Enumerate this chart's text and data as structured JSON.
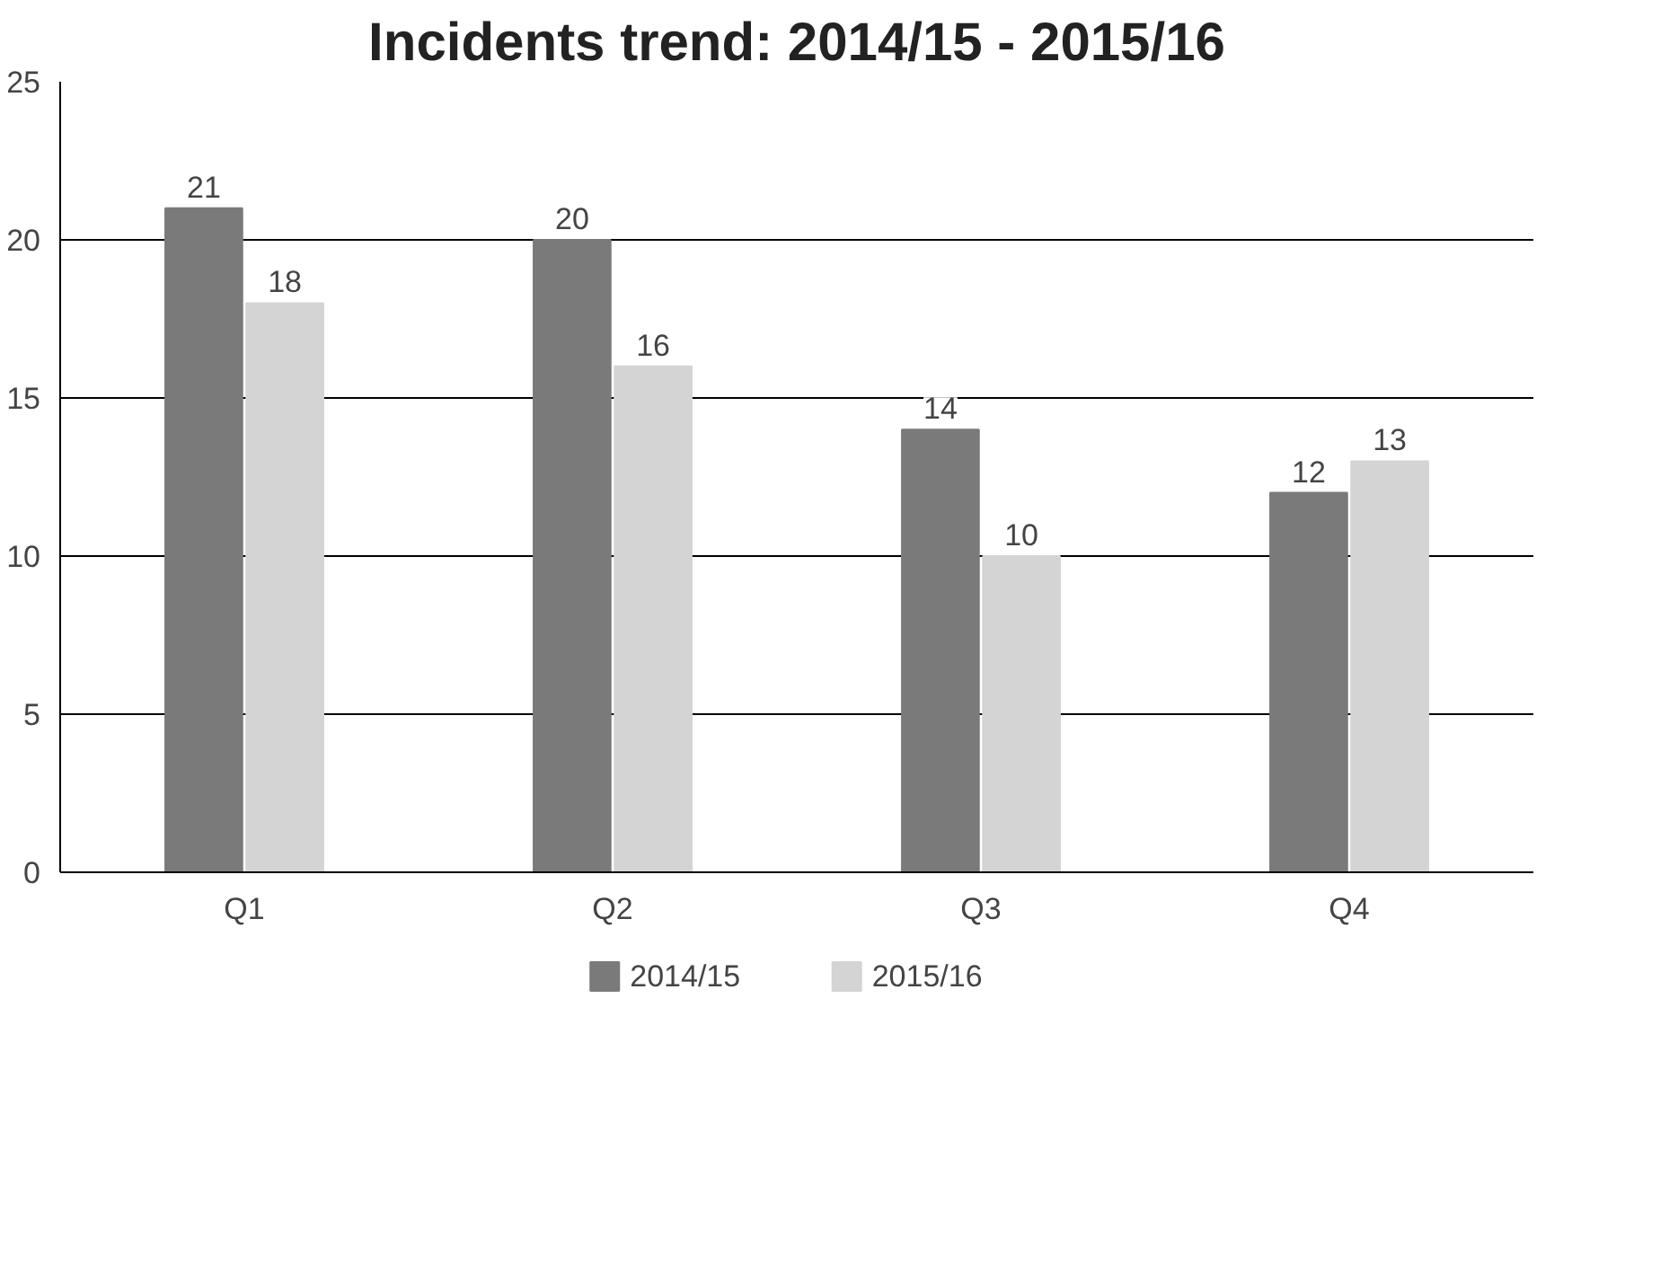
{
  "chart_data": {
    "type": "bar",
    "title": "Incidents trend: 2014/15 - 2015/16",
    "categories": [
      "Q1",
      "Q2",
      "Q3",
      "Q4"
    ],
    "series": [
      {
        "name": "2014/15",
        "color": "#7a7a7a",
        "values": [
          21,
          20,
          14,
          12
        ]
      },
      {
        "name": "2015/16",
        "color": "#d4d4d4",
        "values": [
          18,
          16,
          10,
          13
        ]
      }
    ],
    "ylim": [
      0,
      25
    ],
    "yticks": [
      0,
      5,
      10,
      15,
      20,
      25
    ],
    "grid": "y",
    "legend": "bottom",
    "data_labels": true
  }
}
